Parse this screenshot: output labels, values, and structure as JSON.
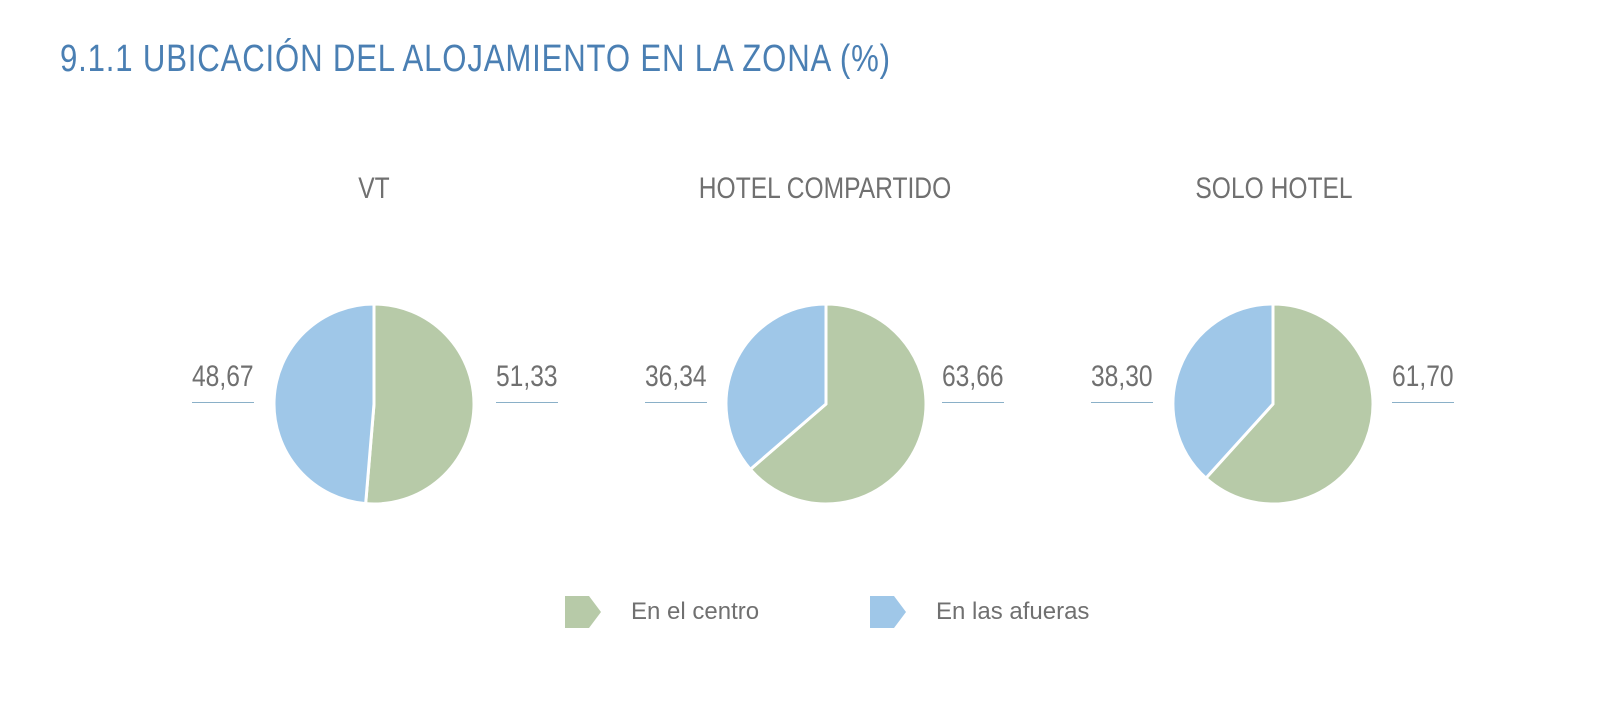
{
  "title": "9.1.1  UBICACIÓN DEL ALOJAMIENTO EN LA ZONA (%)",
  "colors": {
    "title": "#4a7fb3",
    "center": "#b7caa8",
    "outskirts": "#9fc7e8",
    "text": "#707070",
    "underline": "#8ab0c8"
  },
  "legend": {
    "center": "En el centro",
    "outskirts": "En las afueras"
  },
  "chart_data": [
    {
      "type": "pie",
      "title": "VT",
      "legend_placement": "bottom",
      "series": [
        {
          "name": "En el centro",
          "value": 51.33,
          "label": "51,33"
        },
        {
          "name": "En las afueras",
          "value": 48.67,
          "label": "48,67"
        }
      ]
    },
    {
      "type": "pie",
      "title": "HOTEL COMPARTIDO",
      "legend_placement": "bottom",
      "series": [
        {
          "name": "En el centro",
          "value": 63.66,
          "label": "63,66"
        },
        {
          "name": "En las afueras",
          "value": 36.34,
          "label": "36,34"
        }
      ]
    },
    {
      "type": "pie",
      "title": "SOLO HOTEL",
      "legend_placement": "bottom",
      "series": [
        {
          "name": "En el centro",
          "value": 61.7,
          "label": "61,70"
        },
        {
          "name": "En las afueras",
          "value": 38.3,
          "label": "38,30"
        }
      ]
    }
  ]
}
